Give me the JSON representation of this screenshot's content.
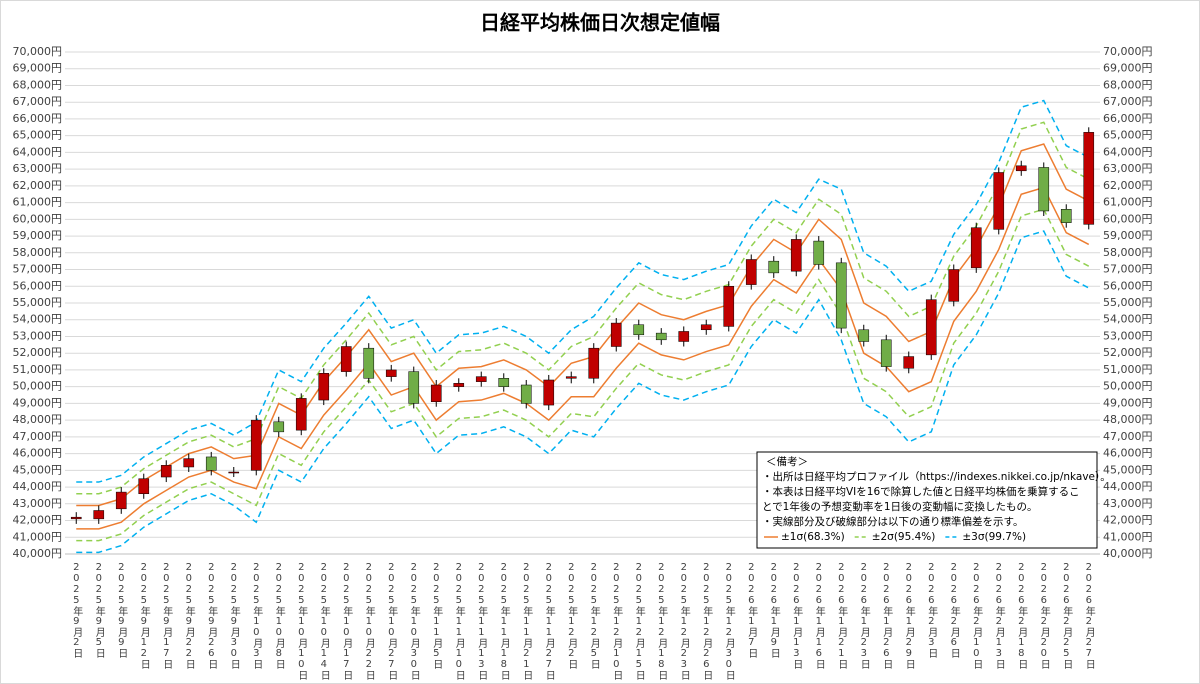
{
  "chart_data": {
    "type": "candlestick",
    "title": "日経平均株価日次想定値幅",
    "categories": [
      "2025年9月2日",
      "2025年9月5日",
      "2025年9月9日",
      "2025年9月12日",
      "2025年9月17日",
      "2025年9月22日",
      "2025年9月26日",
      "2025年9月30日",
      "2025年10月3日",
      "2025年10月8日",
      "2025年10月10日",
      "2025年10月14日",
      "2025年10月17日",
      "2025年10月22日",
      "2025年10月27日",
      "2025年10月30日",
      "2025年11月5日",
      "2025年11月10日",
      "2025年11月13日",
      "2025年11月18日",
      "2025年11月21日",
      "2025年11月27日",
      "2025年12月2日",
      "2025年12月5日",
      "2025年12月10日",
      "2025年12月15日",
      "2025年12月18日",
      "2025年12月23日",
      "2025年12月26日",
      "2025年12月30日",
      "2026年1月7日",
      "2026年1月9日",
      "2026年1月13日",
      "2026年1月16日",
      "2026年1月21日",
      "2026年1月23日",
      "2026年1月26日",
      "2026年1月29日",
      "2026年2月3日",
      "2026年2月6日",
      "2026年2月10日",
      "2026年2月13日",
      "2026年2月18日",
      "2026年2月20日",
      "2026年2月25日",
      "2026年2月27日"
    ],
    "candles": {
      "up_color": "#c00000",
      "down_color": "#70ad47",
      "open": [
        42100,
        42100,
        42700,
        43600,
        44600,
        45200,
        45800,
        44900,
        45000,
        47900,
        47400,
        49200,
        50900,
        52300,
        50600,
        50900,
        49100,
        50000,
        50300,
        50500,
        50100,
        48900,
        50500,
        50500,
        52400,
        53700,
        53200,
        52700,
        53400,
        53600,
        56100,
        57500,
        56900,
        58700,
        57400,
        53400,
        52800,
        51100,
        51900,
        55100,
        57100,
        59400,
        62900,
        63100,
        60600,
        59700
      ],
      "high": [
        42500,
        42900,
        44000,
        44800,
        45600,
        46000,
        46100,
        45200,
        48300,
        48200,
        49600,
        51100,
        52700,
        52600,
        51300,
        51200,
        50400,
        50500,
        50900,
        50800,
        50400,
        50700,
        50900,
        52600,
        54100,
        54000,
        53500,
        53600,
        54000,
        56300,
        57900,
        57800,
        59100,
        59000,
        57700,
        53700,
        53100,
        52100,
        55500,
        57300,
        59800,
        63100,
        63500,
        63400,
        60900,
        65500
      ],
      "low": [
        41800,
        41800,
        42400,
        43300,
        44300,
        44900,
        44700,
        44600,
        44700,
        47000,
        47100,
        48900,
        50600,
        50200,
        50300,
        48700,
        48800,
        49700,
        50000,
        49700,
        48700,
        48600,
        50200,
        50200,
        52100,
        52800,
        52500,
        52400,
        53100,
        53300,
        55800,
        56500,
        56600,
        57000,
        53200,
        52400,
        50900,
        50800,
        51600,
        54800,
        56800,
        59100,
        62600,
        60200,
        59500,
        59400
      ],
      "close": [
        42200,
        42600,
        43700,
        44500,
        45300,
        45700,
        45000,
        44900,
        48000,
        47300,
        49300,
        50800,
        52400,
        50500,
        51000,
        49000,
        50100,
        50200,
        50600,
        50000,
        49000,
        50400,
        50600,
        52300,
        53800,
        53100,
        52800,
        53300,
        53700,
        56000,
        57600,
        56800,
        58800,
        57300,
        53500,
        52700,
        51200,
        51800,
        55200,
        57000,
        59500,
        62800,
        63200,
        60500,
        59800,
        65200
      ]
    },
    "bands": [
      {
        "name": "±1σ(68.3%)",
        "color": "#ed7d31",
        "dash": false,
        "upper": [
          42900,
          42900,
          43300,
          44400,
          45200,
          46000,
          46400,
          45700,
          45900,
          49000,
          48300,
          50300,
          51800,
          53400,
          51500,
          52000,
          50000,
          51100,
          51200,
          51600,
          51000,
          50000,
          51400,
          51800,
          53500,
          55000,
          54300,
          54000,
          54500,
          54900,
          57200,
          58800,
          58000,
          60000,
          58800,
          55000,
          54200,
          52700,
          53300,
          56500,
          58300,
          60800,
          64100,
          64500,
          61800,
          61100
        ],
        "lower": [
          41500,
          41500,
          41900,
          43000,
          43800,
          44600,
          45000,
          44300,
          43900,
          47000,
          46300,
          48300,
          49800,
          51400,
          49500,
          50000,
          48000,
          49100,
          49200,
          49600,
          49000,
          48000,
          49400,
          49400,
          51100,
          52600,
          51900,
          51600,
          52100,
          52500,
          54800,
          56400,
          55600,
          57600,
          55800,
          52000,
          51200,
          49700,
          50300,
          53900,
          55700,
          58200,
          61500,
          61900,
          59200,
          58500
        ]
      },
      {
        "name": "±2σ(95.4%)",
        "color": "#92d050",
        "dash": true,
        "upper": [
          43600,
          43600,
          44000,
          45100,
          45900,
          46700,
          47100,
          46400,
          46900,
          50000,
          49300,
          51300,
          52800,
          54400,
          52500,
          53000,
          51000,
          52100,
          52200,
          52600,
          52000,
          51000,
          52400,
          53000,
          54700,
          56200,
          55500,
          55200,
          55700,
          56100,
          58400,
          60000,
          59200,
          61200,
          60300,
          56500,
          55700,
          54200,
          54800,
          57800,
          59600,
          62100,
          65400,
          65800,
          63100,
          62400
        ],
        "lower": [
          40800,
          40800,
          41200,
          42300,
          43100,
          43900,
          44300,
          43600,
          42900,
          46000,
          45300,
          47300,
          48800,
          50400,
          48500,
          49000,
          47000,
          48100,
          48200,
          48600,
          48000,
          47000,
          48400,
          48200,
          49900,
          51400,
          50700,
          50400,
          50900,
          51300,
          53600,
          55200,
          54400,
          56400,
          54300,
          50500,
          49700,
          48200,
          48800,
          52600,
          54400,
          56900,
          60200,
          60600,
          57900,
          57200
        ]
      },
      {
        "name": "±3σ(99.7%)",
        "color": "#00b0f0",
        "dash": true,
        "upper": [
          44300,
          44300,
          44700,
          45800,
          46600,
          47400,
          47800,
          47100,
          47900,
          51000,
          50300,
          52300,
          53800,
          55400,
          53500,
          54000,
          52000,
          53100,
          53200,
          53600,
          53000,
          52000,
          53400,
          54200,
          55900,
          57400,
          56700,
          56400,
          56900,
          57300,
          59600,
          61200,
          60400,
          62400,
          61800,
          58000,
          57200,
          55700,
          56300,
          59100,
          60900,
          63400,
          66700,
          67100,
          64400,
          63700
        ],
        "lower": [
          40100,
          40100,
          40500,
          41600,
          42400,
          43200,
          43600,
          42900,
          41900,
          45000,
          44300,
          46300,
          47800,
          49400,
          47500,
          48000,
          46000,
          47100,
          47200,
          47600,
          47000,
          46000,
          47400,
          47000,
          48700,
          50200,
          49500,
          49200,
          49700,
          50100,
          52400,
          54000,
          53200,
          55200,
          52800,
          49000,
          48200,
          46700,
          47300,
          51300,
          53100,
          55600,
          58900,
          59300,
          56600,
          55900
        ]
      }
    ],
    "ylim": [
      40000,
      70000
    ],
    "yticks": [
      {
        "value": 40000,
        "label": "40,000円"
      },
      {
        "value": 41000,
        "label": "41,000円"
      },
      {
        "value": 42000,
        "label": "42,000円"
      },
      {
        "value": 43000,
        "label": "43,000円"
      },
      {
        "value": 44000,
        "label": "44,000円"
      },
      {
        "value": 45000,
        "label": "45,000円"
      },
      {
        "value": 46000,
        "label": "46,000円"
      },
      {
        "value": 47000,
        "label": "47,000円"
      },
      {
        "value": 48000,
        "label": "48,000円"
      },
      {
        "value": 49000,
        "label": "49,000円"
      },
      {
        "value": 50000,
        "label": "50,000円"
      },
      {
        "value": 51000,
        "label": "51,000円"
      },
      {
        "value": 52000,
        "label": "52,000円"
      },
      {
        "value": 53000,
        "label": "53,000円"
      },
      {
        "value": 54000,
        "label": "54,000円"
      },
      {
        "value": 55000,
        "label": "55,000円"
      },
      {
        "value": 56000,
        "label": "56,000円"
      },
      {
        "value": 57000,
        "label": "57,000円"
      },
      {
        "value": 58000,
        "label": "58,000円"
      },
      {
        "value": 59000,
        "label": "59,000円"
      },
      {
        "value": 60000,
        "label": "60,000円"
      },
      {
        "value": 61000,
        "label": "61,000円"
      },
      {
        "value": 62000,
        "label": "62,000円"
      },
      {
        "value": 63000,
        "label": "63,000円"
      },
      {
        "value": 64000,
        "label": "64,000円"
      },
      {
        "value": 65000,
        "label": "65,000円"
      },
      {
        "value": 66000,
        "label": "66,000円"
      },
      {
        "value": 67000,
        "label": "67,000円"
      },
      {
        "value": 68000,
        "label": "68,000円"
      },
      {
        "value": 69000,
        "label": "69,000円"
      },
      {
        "value": 70000,
        "label": "70,000円"
      }
    ],
    "grid": true,
    "note": [
      "＜備考＞",
      "・出所は日経平均プロファイル（https://indexes.nikkei.co.jp/nkave）。",
      "・本表は日経平均VIを16で除算した値と日経平均株価を乗算するこ",
      "とで1年後の予想変動率を1日後の変動幅に変換したもの。",
      "・実線部分及び破線部分は以下の通り標準偏差を示す。"
    ]
  }
}
